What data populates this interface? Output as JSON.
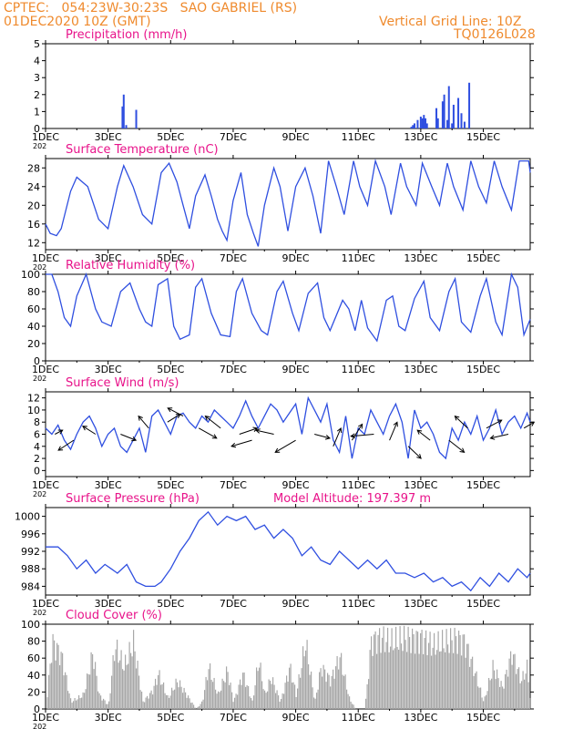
{
  "header": {
    "line1": "CPTEC:   054:23W-30:23S   SAO GABRIEL (RS)",
    "line2": "01DEC2020 10Z (GMT)",
    "grid_note": "Vertical Grid Line: 10Z",
    "code": "TQ0126L028"
  },
  "x_ticks": [
    "1DEC",
    "3DEC",
    "5DEC",
    "7DEC",
    "9DEC",
    "11DEC",
    "13DEC",
    "15DEC"
  ],
  "x_year_fragment": "202",
  "colors": {
    "header": "#ef8a2d",
    "title": "#e8138a",
    "series": "#2f4fe0",
    "cloud": "#a8a8a8",
    "arrow": "#000000"
  },
  "chart_data": [
    {
      "type": "bar",
      "title": "Precipitation (mm/h)",
      "y_ticks": [
        "0",
        "1",
        "2",
        "3",
        "4",
        "5"
      ],
      "ylim": [
        0,
        5
      ],
      "xlim_days": [
        0,
        15.5
      ],
      "x": [
        2.46,
        2.5,
        2.58,
        2.9,
        11.7,
        11.75,
        11.8,
        11.9,
        12.0,
        12.05,
        12.1,
        12.15,
        12.2,
        12.5,
        12.55,
        12.7,
        12.75,
        12.85,
        12.9,
        13.0,
        13.05,
        13.2,
        13.3,
        13.4,
        13.55
      ],
      "values": [
        1.3,
        2.0,
        0.2,
        1.1,
        0.1,
        0.2,
        0.3,
        0.5,
        0.7,
        0.6,
        0.8,
        0.6,
        0.3,
        1.2,
        0.6,
        1.6,
        2.0,
        0.5,
        2.5,
        0.3,
        1.4,
        1.8,
        0.9,
        0.4,
        2.7
      ]
    },
    {
      "type": "line",
      "title": "Surface Temperature (nC)",
      "y_ticks": [
        "12",
        "16",
        "20",
        "24",
        "28"
      ],
      "ylim": [
        10.5,
        30
      ],
      "series": [
        {
          "x": [
            0,
            0.15,
            0.35,
            0.5,
            0.8,
            1.0,
            1.35,
            1.7,
            2.0,
            2.3,
            2.5,
            2.8,
            3.1,
            3.4,
            3.7,
            3.95,
            4.2,
            4.4,
            4.6,
            4.8,
            5.1,
            5.3,
            5.5,
            5.65,
            5.8,
            6.0,
            6.25,
            6.45,
            6.65,
            6.8,
            7.0,
            7.3,
            7.5,
            7.75,
            8.0,
            8.3,
            8.55,
            8.8,
            9.05,
            9.3,
            9.55,
            9.85,
            10.05,
            10.3,
            10.55,
            10.85,
            11.05,
            11.35,
            11.55,
            11.85,
            12.05,
            12.35,
            12.6,
            12.85,
            13.05,
            13.35,
            13.6,
            13.85,
            14.1,
            14.35,
            14.6,
            14.9,
            15.15,
            15.45,
            15.5
          ],
          "values": [
            16,
            14,
            13.5,
            15,
            23,
            26,
            24,
            17,
            15,
            24,
            28.5,
            24,
            18,
            16,
            27,
            29,
            25,
            20,
            15,
            22,
            26.5,
            22,
            17,
            14.5,
            12.5,
            21,
            27,
            18,
            14,
            11.2,
            20,
            28,
            24,
            14.5,
            24,
            28,
            22,
            14,
            29.5,
            24,
            18,
            29.5,
            24,
            20,
            29.5,
            24,
            18,
            29,
            24,
            20,
            29,
            24,
            20,
            29,
            24,
            19,
            29.5,
            24,
            20.5,
            29.5,
            24,
            19,
            29.5,
            29.5,
            27
          ]
        }
      ]
    },
    {
      "type": "line",
      "title": "Relative Humidity (%)",
      "y_ticks": [
        "0",
        "20",
        "40",
        "60",
        "80",
        "100"
      ],
      "ylim": [
        0,
        100
      ],
      "series": [
        {
          "x": [
            0,
            0.2,
            0.4,
            0.6,
            0.8,
            1.0,
            1.3,
            1.6,
            1.8,
            2.1,
            2.4,
            2.7,
            3.0,
            3.2,
            3.4,
            3.6,
            3.9,
            4.1,
            4.3,
            4.6,
            4.8,
            5.0,
            5.3,
            5.6,
            5.9,
            6.1,
            6.3,
            6.6,
            6.9,
            7.1,
            7.4,
            7.6,
            7.9,
            8.1,
            8.4,
            8.7,
            8.9,
            9.1,
            9.5,
            9.7,
            9.9,
            10.1,
            10.3,
            10.6,
            10.9,
            11.1,
            11.3,
            11.5,
            11.8,
            12.1,
            12.3,
            12.6,
            12.9,
            13.1,
            13.3,
            13.6,
            13.9,
            14.1,
            14.4,
            14.6,
            14.9,
            15.1,
            15.3,
            15.5
          ],
          "values": [
            100,
            100,
            80,
            50,
            40,
            75,
            100,
            60,
            45,
            40,
            80,
            90,
            60,
            45,
            40,
            88,
            95,
            40,
            25,
            30,
            85,
            95,
            55,
            30,
            28,
            80,
            95,
            55,
            35,
            30,
            80,
            92,
            55,
            35,
            78,
            90,
            50,
            35,
            70,
            60,
            35,
            70,
            38,
            23,
            70,
            75,
            40,
            35,
            72,
            92,
            50,
            35,
            80,
            95,
            45,
            33,
            75,
            95,
            45,
            30,
            100,
            85,
            30,
            48
          ]
        }
      ]
    },
    {
      "type": "line",
      "title": "Surface Wind (m/s)",
      "y_ticks": [
        "0",
        "2",
        "4",
        "6",
        "8",
        "10",
        "12"
      ],
      "ylim": [
        -1,
        13
      ],
      "series": [
        {
          "x": [
            0,
            0.2,
            0.4,
            0.6,
            0.8,
            1.0,
            1.2,
            1.4,
            1.6,
            1.8,
            2.0,
            2.2,
            2.4,
            2.6,
            2.8,
            3.0,
            3.2,
            3.4,
            3.6,
            3.8,
            4.0,
            4.2,
            4.4,
            4.6,
            4.8,
            5.0,
            5.2,
            5.4,
            5.6,
            5.8,
            6.0,
            6.2,
            6.4,
            6.6,
            6.8,
            7.0,
            7.2,
            7.4,
            7.6,
            7.8,
            8.0,
            8.2,
            8.4,
            8.6,
            8.8,
            9.0,
            9.2,
            9.4,
            9.6,
            9.8,
            10.0,
            10.2,
            10.4,
            10.6,
            10.8,
            11.0,
            11.2,
            11.4,
            11.6,
            11.8,
            12.0,
            12.2,
            12.4,
            12.6,
            12.8,
            13.0,
            13.2,
            13.4,
            13.6,
            13.8,
            14.0,
            14.2,
            14.4,
            14.6,
            14.8,
            15.0,
            15.2,
            15.4,
            15.5
          ],
          "values": [
            7,
            6,
            7.5,
            5,
            3.5,
            6,
            8,
            9,
            7,
            4,
            6,
            7,
            4,
            3,
            5,
            7,
            3,
            9,
            10,
            8,
            6,
            9,
            9.5,
            8,
            7,
            9,
            8,
            10,
            9,
            8,
            7,
            9,
            11.5,
            9,
            7,
            9,
            11,
            10,
            8,
            9.5,
            11,
            6,
            12,
            10,
            8,
            11,
            5,
            3,
            9,
            2,
            7,
            6,
            10,
            8,
            6,
            9,
            11,
            8,
            2,
            10,
            7,
            8,
            6,
            3,
            2,
            7,
            5,
            8,
            6,
            9,
            5,
            7,
            10,
            6,
            8,
            9,
            7,
            9.5,
            8
          ]
        }
      ]
    },
    {
      "type": "line",
      "title": "Surface Pressure (hPa)",
      "annotation": "Model Altitude: 197.397  m",
      "y_ticks": [
        "984",
        "988",
        "992",
        "996",
        "1000"
      ],
      "ylim": [
        982,
        1002
      ],
      "series": [
        {
          "x": [
            0,
            0.4,
            0.7,
            1.0,
            1.3,
            1.6,
            1.9,
            2.1,
            2.3,
            2.6,
            2.9,
            3.2,
            3.5,
            3.7,
            4.0,
            4.3,
            4.6,
            4.9,
            5.2,
            5.5,
            5.8,
            6.1,
            6.4,
            6.7,
            7.0,
            7.3,
            7.6,
            7.9,
            8.2,
            8.5,
            8.8,
            9.1,
            9.4,
            9.7,
            10.0,
            10.3,
            10.6,
            10.9,
            11.2,
            11.5,
            11.8,
            12.1,
            12.4,
            12.7,
            13.0,
            13.3,
            13.6,
            13.9,
            14.2,
            14.5,
            14.8,
            15.1,
            15.4,
            15.5
          ],
          "values": [
            993,
            993,
            991,
            988,
            990,
            987,
            989,
            988,
            987,
            989,
            985,
            984,
            984,
            985,
            988,
            992,
            995,
            999,
            1001,
            998,
            1000,
            999,
            1000,
            997,
            998,
            995,
            997,
            995,
            991,
            993,
            990,
            989,
            992,
            990,
            988,
            990,
            988,
            990,
            987,
            987,
            986,
            987,
            985,
            986,
            984,
            985,
            983,
            986,
            984,
            987,
            985,
            988,
            986,
            987
          ]
        }
      ]
    },
    {
      "type": "bar",
      "title": "Cloud Cover (%)",
      "y_ticks": [
        "0",
        "20",
        "40",
        "60",
        "80",
        "100"
      ],
      "ylim": [
        0,
        100
      ],
      "profile_x": [
        0,
        0.2,
        0.5,
        0.8,
        1.2,
        1.5,
        1.7,
        2.0,
        2.2,
        2.5,
        2.8,
        3.1,
        3.4,
        3.6,
        3.9,
        4.2,
        4.5,
        4.8,
        5.0,
        5.2,
        5.5,
        5.8,
        6.0,
        6.3,
        6.6,
        6.8,
        7.0,
        7.2,
        7.5,
        7.8,
        8.0,
        8.3,
        8.6,
        8.8,
        9.1,
        9.4,
        9.7,
        9.9,
        10.2,
        10.4,
        10.6,
        10.8,
        11.0,
        11.5,
        12.0,
        12.4,
        12.8,
        13.1,
        13.4,
        13.7,
        14.0,
        14.3,
        14.6,
        14.9,
        15.2,
        15.4,
        15.5
      ],
      "profile_values": [
        0,
        95,
        75,
        10,
        20,
        80,
        20,
        5,
        90,
        60,
        95,
        10,
        25,
        50,
        15,
        40,
        20,
        0,
        10,
        60,
        20,
        55,
        10,
        50,
        10,
        70,
        20,
        45,
        10,
        60,
        20,
        95,
        10,
        60,
        40,
        75,
        15,
        0,
        0,
        95,
        100,
        100,
        95,
        100,
        100,
        90,
        95,
        100,
        95,
        55,
        10,
        60,
        30,
        80,
        40,
        60,
        0
      ]
    }
  ]
}
